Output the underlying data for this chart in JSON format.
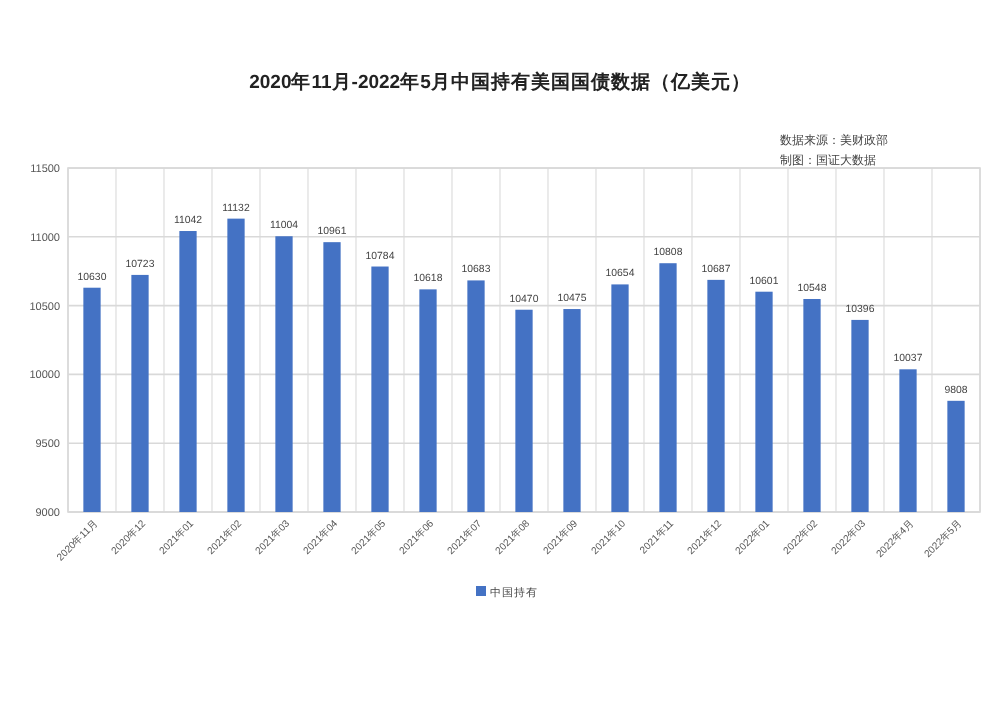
{
  "chart_data": {
    "type": "bar",
    "title": "2020年11月-2022年5月中国持有美国国债数据（亿美元）",
    "categories": [
      "2020年11月",
      "2020年12",
      "2021年01",
      "2021年02",
      "2021年03",
      "2021年04",
      "2021年05",
      "2021年06",
      "2021年07",
      "2021年08",
      "2021年09",
      "2021年10",
      "2021年11",
      "2021年12",
      "2022年01",
      "2022年02",
      "2022年03",
      "2022年4月",
      "2022年5月"
    ],
    "series": [
      {
        "name": "中国持有",
        "color": "#4472c4",
        "values": [
          10630,
          10723,
          11042,
          11132,
          11004,
          10961,
          10784,
          10618,
          10683,
          10470,
          10475,
          10654,
          10808,
          10687,
          10601,
          10548,
          10396,
          10037,
          9808
        ]
      }
    ],
    "ylim": [
      9000,
      11500
    ],
    "yticks": [
      9000,
      9500,
      10000,
      10500,
      11000,
      11500
    ],
    "grid": true,
    "legend": "bottom",
    "data_labels": true,
    "annotations": [
      "数据来源：美财政部",
      "制图：国证大数据"
    ]
  }
}
